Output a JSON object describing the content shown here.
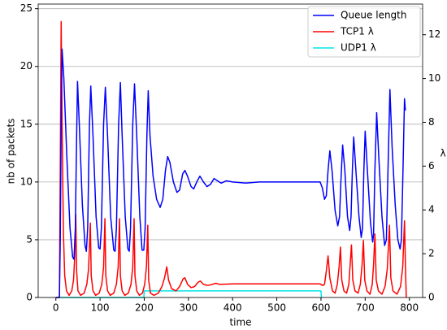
{
  "chart_data": {
    "type": "line",
    "xlabel": "time",
    "ylabel": "nb of packets",
    "y2label": "λ",
    "xlim": [
      -40,
      830
    ],
    "ylim": [
      0,
      25.4
    ],
    "y2lim": [
      0,
      13.4
    ],
    "xticks": [
      0,
      100,
      200,
      300,
      400,
      500,
      600,
      700,
      800
    ],
    "yticks": [
      0,
      5,
      10,
      15,
      20,
      25
    ],
    "y2ticks": [
      0,
      2,
      4,
      6,
      8,
      10,
      12
    ],
    "grid": true,
    "legend": "upper right",
    "series": [
      {
        "name": "Queue length",
        "color": "#0000ff",
        "axis": "y",
        "x": [
          0,
          8,
          10,
          12,
          14,
          18,
          25,
          32,
          38,
          41,
          44,
          47,
          49,
          53,
          60,
          66,
          69,
          72,
          76,
          79,
          84,
          91,
          97,
          100,
          103,
          108,
          112,
          117,
          124,
          131,
          134,
          137,
          142,
          146,
          150,
          157,
          163,
          166,
          169,
          174,
          178,
          183,
          190,
          195,
          199,
          202,
          206,
          209,
          213,
          220,
          228,
          236,
          242,
          248,
          253,
          258,
          266,
          274,
          280,
          287,
          292,
          298,
          306,
          312,
          320,
          326,
          334,
          342,
          350,
          358,
          366,
          374,
          386,
          400,
          430,
          460,
          520,
          598,
          603,
          608,
          612,
          616,
          620,
          625,
          632,
          638,
          642,
          645,
          649,
          654,
          660,
          665,
          668,
          671,
          674,
          679,
          686,
          691,
          694,
          697,
          700,
          705,
          712,
          717,
          719,
          722,
          726,
          731,
          738,
          744,
          748,
          751,
          756,
          761,
          768,
          774,
          779,
          782,
          785,
          789,
          791
        ],
        "values": [
          0,
          0,
          5,
          15,
          21.5,
          19,
          12,
          6,
          3.5,
          3.3,
          6,
          14,
          18.7,
          15,
          8,
          4.5,
          4,
          6,
          15,
          18.3,
          14,
          7,
          4.3,
          4.2,
          6,
          15,
          18.2,
          14,
          7,
          4.1,
          4,
          6,
          15,
          18.6,
          14,
          7,
          4.2,
          4,
          6,
          15,
          18.5,
          14,
          7,
          4.1,
          4.1,
          6,
          14,
          17.9,
          14,
          10.5,
          8.5,
          7.8,
          8.5,
          11,
          12.2,
          11.7,
          10,
          9.1,
          9.3,
          10.7,
          11,
          10.5,
          9.6,
          9.4,
          10.1,
          10.5,
          10,
          9.6,
          9.8,
          10.3,
          10.1,
          9.9,
          10.1,
          10,
          9.9,
          10,
          10,
          10,
          9.5,
          8.5,
          8.8,
          11,
          12.7,
          11,
          7.5,
          6.2,
          7,
          10,
          13.2,
          11,
          7,
          5.8,
          7,
          11,
          13.9,
          11,
          7,
          5.2,
          6,
          11,
          14.4,
          11,
          6.5,
          4.8,
          5.5,
          11,
          16,
          12,
          7,
          4.5,
          5,
          10,
          18,
          13,
          8,
          5,
          4.2,
          5,
          10,
          17.2,
          16.2
        ]
      },
      {
        "name": "TCP1 λ",
        "color": "#ff0000",
        "axis": "y2",
        "x": [
          0,
          8,
          10,
          12,
          14,
          17,
          20,
          24,
          30,
          36,
          40,
          43,
          45,
          47,
          50,
          56,
          64,
          70,
          74,
          78,
          80,
          84,
          90,
          98,
          104,
          108,
          111,
          113,
          117,
          123,
          131,
          137,
          141,
          144,
          146,
          150,
          156,
          164,
          170,
          174,
          177,
          179,
          183,
          189,
          196,
          201,
          205,
          208,
          210,
          214,
          222,
          232,
          240,
          246,
          251,
          255,
          262,
          272,
          280,
          288,
          292,
          298,
          306,
          314,
          322,
          327,
          334,
          344,
          354,
          362,
          370,
          400,
          500,
          598,
          604,
          608,
          612,
          616,
          620,
          626,
          632,
          637,
          641,
          644,
          647,
          652,
          658,
          663,
          666,
          669,
          672,
          677,
          684,
          689,
          693,
          696,
          699,
          704,
          711,
          716,
          719,
          722,
          725,
          730,
          738,
          745,
          750,
          755,
          758,
          763,
          772,
          780,
          785,
          789,
          791,
          793
        ],
        "values": [
          0,
          0,
          6,
          12.6,
          8,
          3,
          1,
          0.3,
          0.1,
          0.3,
          0.8,
          2,
          3.8,
          1.2,
          0.3,
          0.1,
          0.2,
          0.6,
          1.3,
          3.4,
          1,
          0.3,
          0.1,
          0.2,
          0.6,
          1.4,
          3.6,
          1,
          0.3,
          0.1,
          0.2,
          0.6,
          1.4,
          3.6,
          1,
          0.3,
          0.1,
          0.2,
          0.6,
          1.4,
          3.6,
          1,
          0.3,
          0.1,
          0.2,
          0.6,
          1.4,
          3.3,
          0.8,
          0.2,
          0.1,
          0.2,
          0.5,
          0.9,
          1.4,
          0.8,
          0.4,
          0.3,
          0.5,
          0.85,
          0.9,
          0.6,
          0.45,
          0.5,
          0.7,
          0.75,
          0.6,
          0.55,
          0.6,
          0.65,
          0.6,
          0.62,
          0.62,
          0.62,
          0.55,
          0.6,
          1.2,
          1.9,
          0.9,
          0.3,
          0.2,
          0.6,
          1.4,
          2.3,
          0.8,
          0.3,
          0.2,
          0.6,
          1.5,
          2.4,
          0.8,
          0.3,
          0.2,
          0.6,
          1.5,
          2.6,
          0.8,
          0.3,
          0.15,
          0.6,
          1.5,
          2.9,
          0.8,
          0.3,
          0.15,
          0.5,
          1.3,
          3.3,
          0.9,
          0.3,
          0.15,
          0.5,
          1.4,
          3.5,
          1.5,
          0
        ]
      },
      {
        "name": "UDP1 λ",
        "color": "#00e5e5",
        "axis": "y2",
        "x": [
          0,
          199,
          200,
          600,
          601
        ],
        "values": [
          0,
          0,
          0.3,
          0.3,
          0
        ]
      }
    ]
  }
}
